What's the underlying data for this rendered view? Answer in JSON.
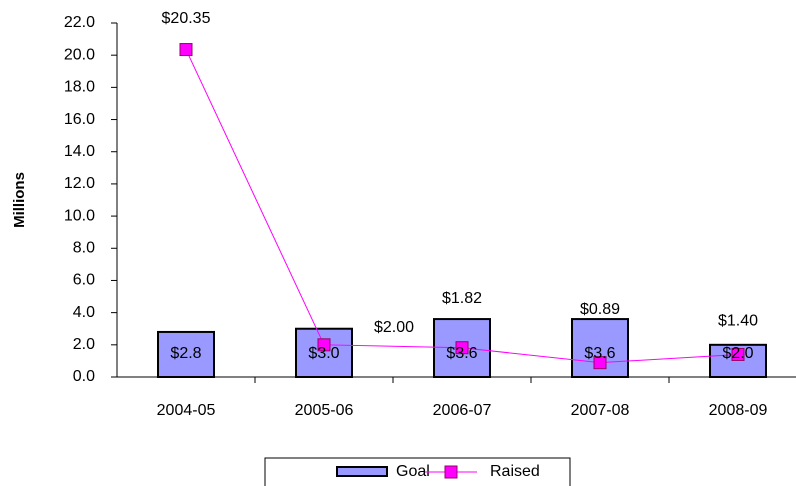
{
  "chart_data": {
    "type": "combo",
    "y_label": "Millions",
    "categories": [
      "2004-05",
      "2005-06",
      "2006-07",
      "2007-08",
      "2008-09"
    ],
    "series": [
      {
        "name": "Goal",
        "type": "bar",
        "color": "#9999ff",
        "values": [
          2.8,
          3.0,
          3.6,
          3.6,
          2.0
        ],
        "value_labels": [
          "$2.8",
          "$3.0",
          "$3.6",
          "$3.6",
          "$2.0"
        ]
      },
      {
        "name": "Raised",
        "type": "line",
        "color": "#ff00ff",
        "values": [
          20.35,
          2.0,
          1.82,
          0.89,
          1.4
        ],
        "value_labels": [
          "$20.35",
          "$2.00",
          "$1.82",
          "$0.89",
          "$1.40"
        ]
      }
    ],
    "ylim": [
      0,
      22
    ],
    "yticks": [
      {
        "value": 0,
        "label": "0.0"
      },
      {
        "value": 2,
        "label": "2.0"
      },
      {
        "value": 4,
        "label": "4.0"
      },
      {
        "value": 6,
        "label": "6.0"
      },
      {
        "value": 8,
        "label": "8.0"
      },
      {
        "value": 10,
        "label": "10.0"
      },
      {
        "value": 12,
        "label": "12.0"
      },
      {
        "value": 14,
        "label": "14.0"
      },
      {
        "value": 16,
        "label": "16.0"
      },
      {
        "value": 18,
        "label": "18.0"
      },
      {
        "value": 20,
        "label": "20.0"
      },
      {
        "value": 22,
        "label": "22.0"
      }
    ],
    "legend": "bottom"
  }
}
